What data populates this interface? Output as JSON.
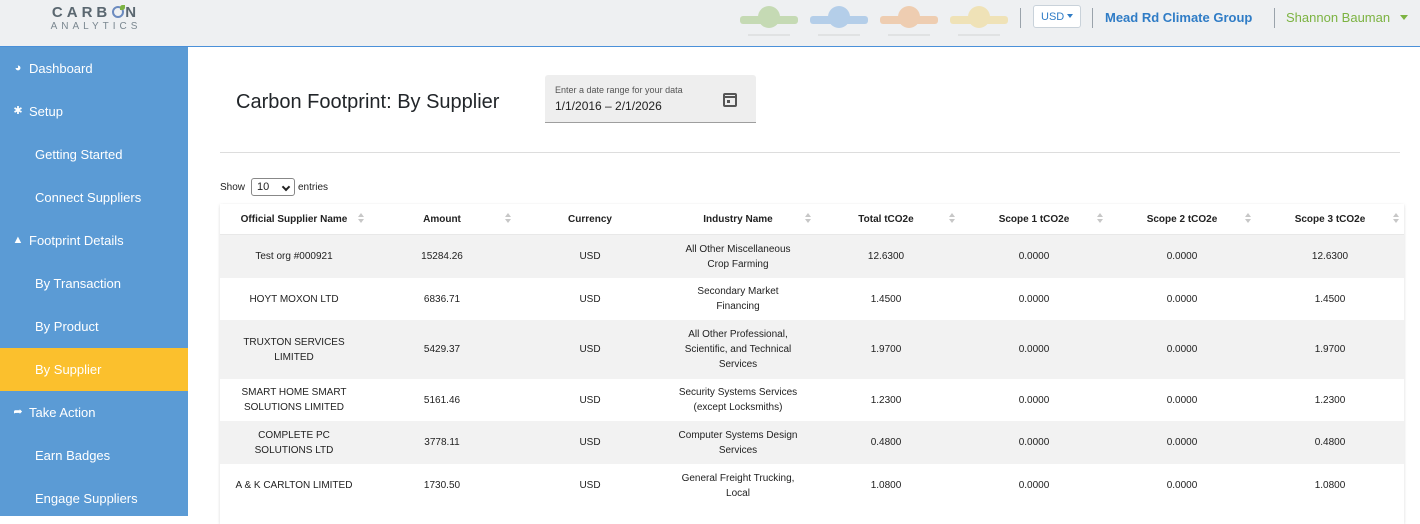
{
  "header": {
    "logo_main": "CARB",
    "logo_main_end": "N",
    "logo_sub": "ANALYTICS",
    "badges": [
      {
        "name": "search-badge-icon",
        "color": "#7cb342",
        "glyph": "⚲"
      },
      {
        "name": "target-badge-icon",
        "color": "#4a90d9",
        "glyph": "◎"
      },
      {
        "name": "text-badge-icon",
        "color": "#ef8f3a",
        "glyph": "T"
      },
      {
        "name": "megaphone-badge-icon",
        "color": "#f2c94c",
        "glyph": "◀"
      }
    ],
    "currency": "USD",
    "org_name": "Mead Rd Climate Group",
    "user_name": "Shannon Bauman"
  },
  "sidebar": {
    "items": [
      {
        "label": "Dashboard",
        "type": "top",
        "icon": "dashboard-icon",
        "glyph": "◕"
      },
      {
        "label": "Setup",
        "type": "top",
        "icon": "gear-icon",
        "glyph": "✱"
      },
      {
        "label": "Getting Started",
        "type": "sub"
      },
      {
        "label": "Connect Suppliers",
        "type": "sub"
      },
      {
        "label": "Footprint Details",
        "type": "top",
        "icon": "tree-icon",
        "glyph": "▲"
      },
      {
        "label": "By Transaction",
        "type": "sub"
      },
      {
        "label": "By Product",
        "type": "sub"
      },
      {
        "label": "By Supplier",
        "type": "sub",
        "active": true
      },
      {
        "label": "Take Action",
        "type": "top",
        "icon": "share-icon",
        "glyph": "➦"
      },
      {
        "label": "Earn Badges",
        "type": "sub"
      },
      {
        "label": "Engage Suppliers",
        "type": "sub"
      }
    ]
  },
  "main": {
    "title": "Carbon Footprint: By Supplier",
    "date_label": "Enter a date range for your data",
    "date_value": "1/1/2016 – 2/1/2026",
    "show_label": "Show",
    "show_value": "10",
    "entries_label": "entries"
  },
  "table": {
    "columns": [
      "Official Supplier Name",
      "Amount",
      "Currency",
      "Industry Name",
      "Total tCO2e",
      "Scope 1 tCO2e",
      "Scope 2 tCO2e",
      "Scope 3 tCO2e"
    ],
    "rows": [
      {
        "supplier": [
          "Test org #000921"
        ],
        "amount": "15284.26",
        "currency": "USD",
        "industry": [
          "All Other Miscellaneous",
          "Crop Farming"
        ],
        "total": "12.6300",
        "scope1": "0.0000",
        "scope2": "0.0000",
        "scope3": "12.6300"
      },
      {
        "supplier": [
          "HOYT MOXON LTD"
        ],
        "amount": "6836.71",
        "currency": "USD",
        "industry": [
          "Secondary Market",
          "Financing"
        ],
        "total": "1.4500",
        "scope1": "0.0000",
        "scope2": "0.0000",
        "scope3": "1.4500"
      },
      {
        "supplier": [
          "TRUXTON SERVICES",
          "LIMITED"
        ],
        "amount": "5429.37",
        "currency": "USD",
        "industry": [
          "All Other Professional,",
          "Scientific, and Technical",
          "Services"
        ],
        "total": "1.9700",
        "scope1": "0.0000",
        "scope2": "0.0000",
        "scope3": "1.9700"
      },
      {
        "supplier": [
          "SMART HOME SMART",
          "SOLUTIONS LIMITED"
        ],
        "amount": "5161.46",
        "currency": "USD",
        "industry": [
          "Security Systems Services",
          "(except Locksmiths)"
        ],
        "total": "1.2300",
        "scope1": "0.0000",
        "scope2": "0.0000",
        "scope3": "1.2300"
      },
      {
        "supplier": [
          "COMPLETE PC",
          "SOLUTIONS LTD"
        ],
        "amount": "3778.11",
        "currency": "USD",
        "industry": [
          "Computer Systems Design",
          "Services"
        ],
        "total": "0.4800",
        "scope1": "0.0000",
        "scope2": "0.0000",
        "scope3": "0.4800"
      },
      {
        "supplier": [
          "A & K CARLTON LIMITED"
        ],
        "amount": "1730.50",
        "currency": "USD",
        "industry": [
          "General Freight Trucking,",
          "Local"
        ],
        "total": "1.0800",
        "scope1": "0.0000",
        "scope2": "0.0000",
        "scope3": "1.0800"
      }
    ]
  },
  "colors": {
    "sidebar": "#5b9bd5",
    "active": "#fbc02d",
    "brand_blue": "#2f7cc6",
    "brand_green": "#7cb342"
  }
}
